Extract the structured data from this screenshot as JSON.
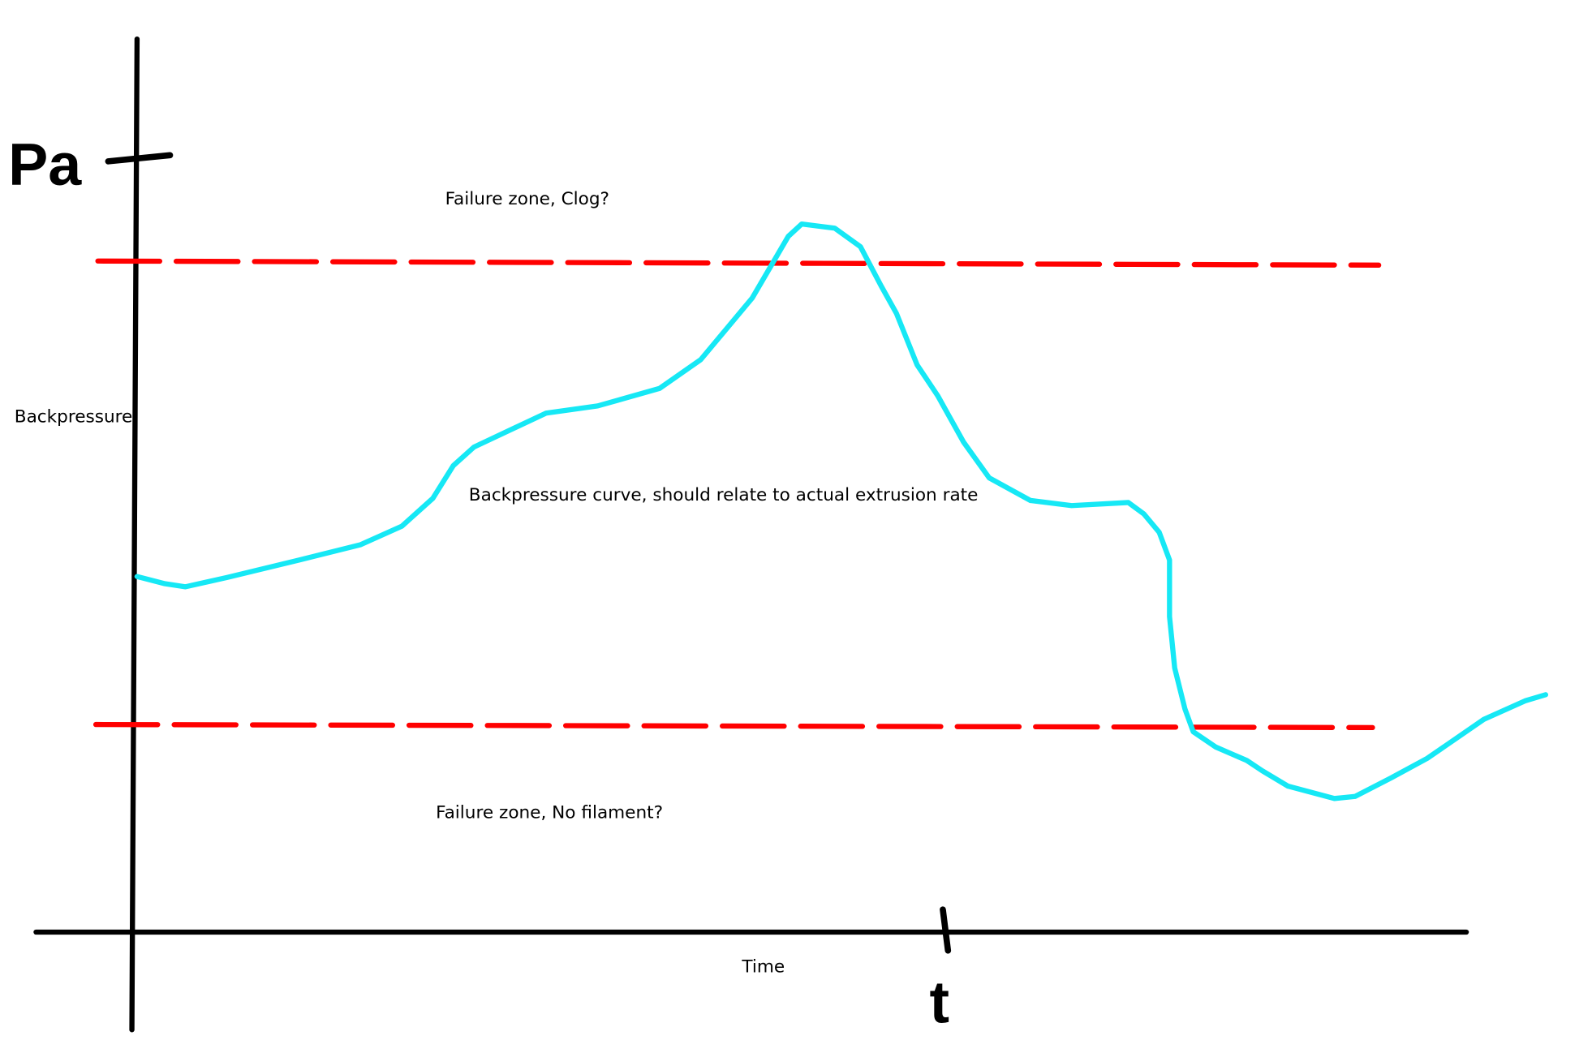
{
  "y_axis_symbol": "Pa",
  "y_axis_label": "Backpressure",
  "x_axis_label": "Time",
  "x_axis_symbol": "t",
  "upper_zone_label": "Failure zone, Clog?",
  "curve_label": "Backpressure curve, should relate to actual extrusion rate",
  "lower_zone_label": "Failure zone, No filament?"
}
